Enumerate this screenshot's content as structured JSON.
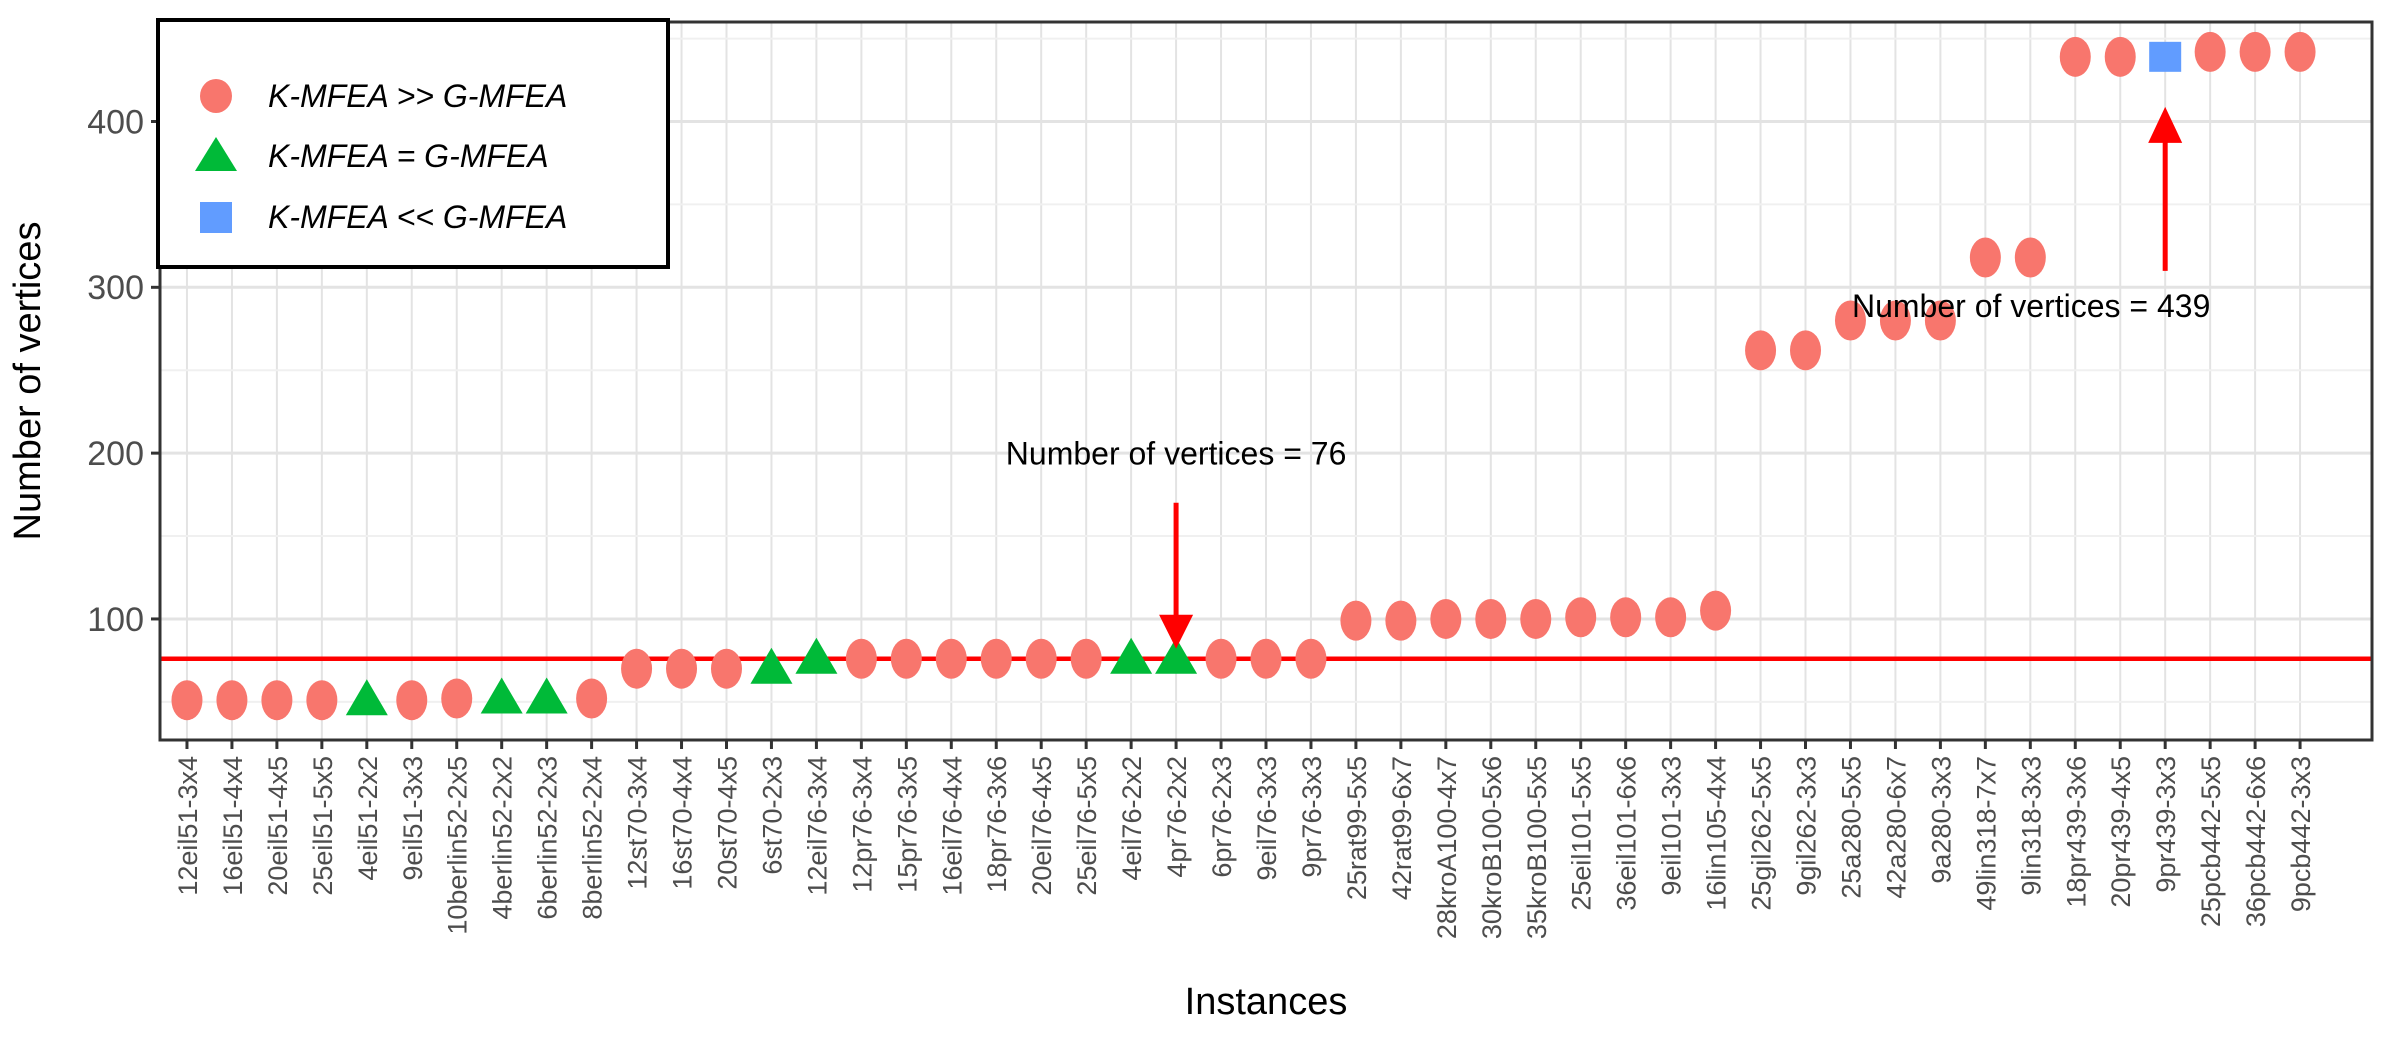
{
  "chart_data": {
    "type": "scatter",
    "title": "",
    "xlabel": "Instances",
    "ylabel": "Number of vertices",
    "y_ticks": [
      100,
      200,
      300,
      400
    ],
    "y_minor_ticks": [
      50,
      150,
      250,
      350,
      450
    ],
    "ylim": [
      27,
      460
    ],
    "grid": true,
    "hline": {
      "value": 76
    },
    "legend": {
      "position": "top-left-inside",
      "entries": [
        {
          "label": "K-MFEA >> G-MFEA",
          "marker": "circle"
        },
        {
          "label": "K-MFEA = G-MFEA",
          "marker": "triangle"
        },
        {
          "label": "K-MFEA << G-MFEA",
          "marker": "square"
        }
      ]
    },
    "colors": {
      "circle": "#F8766D",
      "triangle": "#00BA38",
      "square": "#619CFF",
      "ref_line": "#FF0000",
      "arrow": "#FF0000",
      "grid_major": "#E3E3E3",
      "grid_minor": "#F0F0F0",
      "panel_border": "#333333",
      "tick_label": "#4D4D4D",
      "axis_title": "#000000",
      "annotation_text": "#000000",
      "legend_border": "#000000"
    },
    "points": [
      {
        "instance": "12eil51-3x4",
        "vertices": 51,
        "marker": "circle"
      },
      {
        "instance": "16eil51-4x4",
        "vertices": 51,
        "marker": "circle"
      },
      {
        "instance": "20eil51-4x5",
        "vertices": 51,
        "marker": "circle"
      },
      {
        "instance": "25eil51-5x5",
        "vertices": 51,
        "marker": "circle"
      },
      {
        "instance": "4eil51-2x2",
        "vertices": 51,
        "marker": "triangle"
      },
      {
        "instance": "9eil51-3x3",
        "vertices": 51,
        "marker": "circle"
      },
      {
        "instance": "10berlin52-2x5",
        "vertices": 52,
        "marker": "circle"
      },
      {
        "instance": "4berlin52-2x2",
        "vertices": 52,
        "marker": "triangle"
      },
      {
        "instance": "6berlin52-2x3",
        "vertices": 52,
        "marker": "triangle"
      },
      {
        "instance": "8berlin52-2x4",
        "vertices": 52,
        "marker": "circle"
      },
      {
        "instance": "12st70-3x4",
        "vertices": 70,
        "marker": "circle"
      },
      {
        "instance": "16st70-4x4",
        "vertices": 70,
        "marker": "circle"
      },
      {
        "instance": "20st70-4x5",
        "vertices": 70,
        "marker": "circle"
      },
      {
        "instance": "6st70-2x3",
        "vertices": 70,
        "marker": "triangle"
      },
      {
        "instance": "12eil76-3x4",
        "vertices": 76,
        "marker": "triangle"
      },
      {
        "instance": "12pr76-3x4",
        "vertices": 76,
        "marker": "circle"
      },
      {
        "instance": "15pr76-3x5",
        "vertices": 76,
        "marker": "circle"
      },
      {
        "instance": "16eil76-4x4",
        "vertices": 76,
        "marker": "circle"
      },
      {
        "instance": "18pr76-3x6",
        "vertices": 76,
        "marker": "circle"
      },
      {
        "instance": "20eil76-4x5",
        "vertices": 76,
        "marker": "circle"
      },
      {
        "instance": "25eil76-5x5",
        "vertices": 76,
        "marker": "circle"
      },
      {
        "instance": "4eil76-2x2",
        "vertices": 76,
        "marker": "triangle"
      },
      {
        "instance": "4pr76-2x2",
        "vertices": 76,
        "marker": "triangle"
      },
      {
        "instance": "6pr76-2x3",
        "vertices": 76,
        "marker": "circle"
      },
      {
        "instance": "9eil76-3x3",
        "vertices": 76,
        "marker": "circle"
      },
      {
        "instance": "9pr76-3x3",
        "vertices": 76,
        "marker": "circle"
      },
      {
        "instance": "25rat99-5x5",
        "vertices": 99,
        "marker": "circle"
      },
      {
        "instance": "42rat99-6x7",
        "vertices": 99,
        "marker": "circle"
      },
      {
        "instance": "28kroA100-4x7",
        "vertices": 100,
        "marker": "circle"
      },
      {
        "instance": "30kroB100-5x6",
        "vertices": 100,
        "marker": "circle"
      },
      {
        "instance": "35kroB100-5x5",
        "vertices": 100,
        "marker": "circle"
      },
      {
        "instance": "25eil101-5x5",
        "vertices": 101,
        "marker": "circle"
      },
      {
        "instance": "36eil101-6x6",
        "vertices": 101,
        "marker": "circle"
      },
      {
        "instance": "9eil101-3x3",
        "vertices": 101,
        "marker": "circle"
      },
      {
        "instance": "16lin105-4x4",
        "vertices": 105,
        "marker": "circle"
      },
      {
        "instance": "25gil262-5x5",
        "vertices": 262,
        "marker": "circle"
      },
      {
        "instance": "9gil262-3x3",
        "vertices": 262,
        "marker": "circle"
      },
      {
        "instance": "25a280-5x5",
        "vertices": 280,
        "marker": "circle"
      },
      {
        "instance": "42a280-6x7",
        "vertices": 280,
        "marker": "circle"
      },
      {
        "instance": "9a280-3x3",
        "vertices": 280,
        "marker": "circle"
      },
      {
        "instance": "49lin318-7x7",
        "vertices": 318,
        "marker": "circle"
      },
      {
        "instance": "9lin318-3x3",
        "vertices": 318,
        "marker": "circle"
      },
      {
        "instance": "18pr439-3x6",
        "vertices": 439,
        "marker": "circle"
      },
      {
        "instance": "20pr439-4x5",
        "vertices": 439,
        "marker": "circle"
      },
      {
        "instance": "9pr439-3x3",
        "vertices": 439,
        "marker": "square"
      },
      {
        "instance": "25pcb442-5x5",
        "vertices": 442,
        "marker": "circle"
      },
      {
        "instance": "36pcb442-6x6",
        "vertices": 442,
        "marker": "circle"
      },
      {
        "instance": "9pcb442-3x3",
        "vertices": 442,
        "marker": "circle"
      }
    ],
    "annotations": [
      {
        "text": "Number of vertices = 76",
        "target_instance": "4pr76-2x2",
        "direction": "down",
        "text_dx": 0
      },
      {
        "text": "Number of vertices = 439",
        "target_instance": "9pr439-3x3",
        "direction": "up",
        "text_dx": -134
      }
    ]
  }
}
